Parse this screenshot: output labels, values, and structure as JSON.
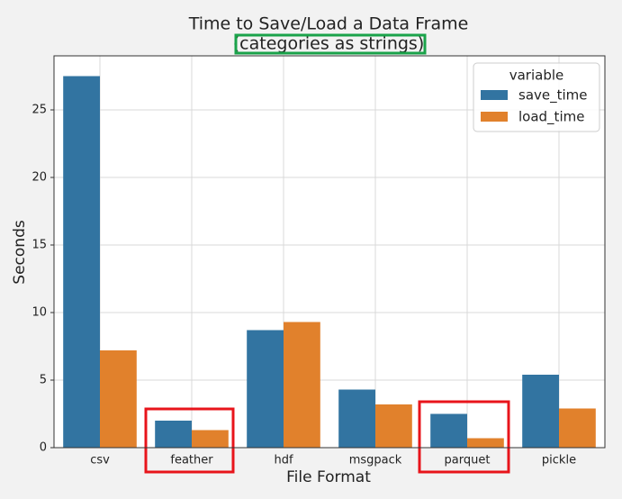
{
  "chart_data": {
    "type": "bar",
    "title": "Time to Save/Load a Data Frame",
    "subtitle": "(categories as strings)",
    "x_label": "File Format",
    "y_label": "Seconds",
    "categories": [
      "csv",
      "feather",
      "hdf",
      "msgpack",
      "parquet",
      "pickle"
    ],
    "series": [
      {
        "name": "save_time",
        "color": "#3274a1",
        "values": [
          27.5,
          2.0,
          8.7,
          4.3,
          2.5,
          5.4
        ]
      },
      {
        "name": "load_time",
        "color": "#e1812c",
        "values": [
          7.2,
          1.3,
          9.3,
          3.2,
          0.7,
          2.9
        ]
      }
    ],
    "legend_title": "variable",
    "legend_position": "upper right",
    "ylim": [
      0,
      29
    ],
    "yticks": [
      0,
      5,
      10,
      15,
      20,
      25
    ],
    "grid": true
  }
}
